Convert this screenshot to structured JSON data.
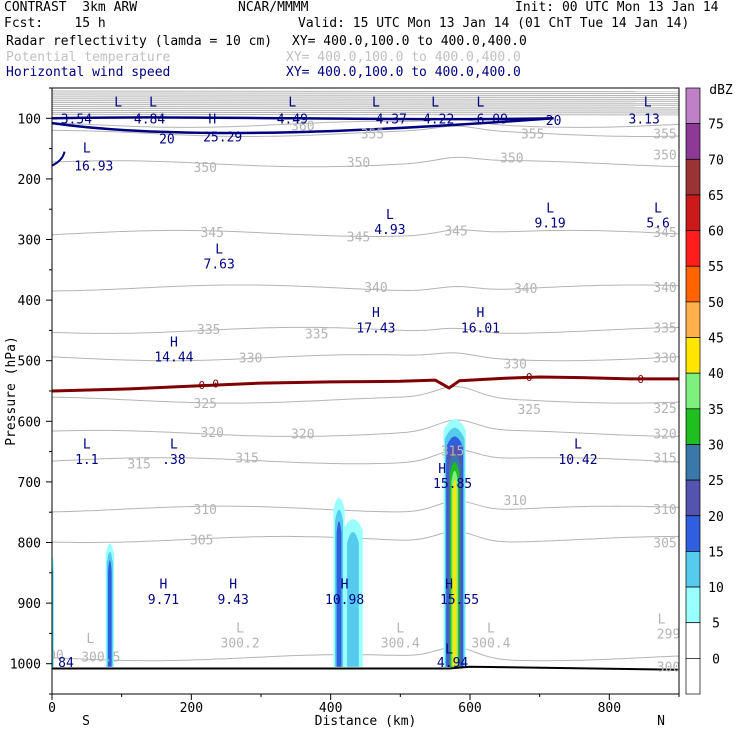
{
  "header": {
    "model": "CONTRAST  3km ARW",
    "center": "NCAR/MMMM",
    "init": "Init: 00 UTC Mon 13 Jan 14",
    "fcst": "Fcst:    15 h",
    "valid": "Valid: 15 UTC Mon 13 Jan 14 (01 ChT Tue 14 Jan 14)",
    "field1": "Radar reflectivity (lamda = 10 cm)",
    "field1_xy": "XY= 400.0,100.0 to 400.0,400.0",
    "field2": "Potential temperature",
    "field2_xy": "XY= 400.0,100.0 to 400.0,400.0",
    "field3": "Horizontal wind speed",
    "field3_xy": "XY= 400.0,100.0 to 400.0,400.0"
  },
  "colors": {
    "theta": "#b4b4b4",
    "wind": "#000080",
    "freezing": "#800000",
    "ground": "#000000"
  },
  "chart_data": {
    "type": "cross-section",
    "xlabel": "Distance (km)",
    "ylabel": "Pressure (hPa)",
    "xlim": [
      0,
      900
    ],
    "ylim": [
      1050,
      50
    ],
    "x_ticks": [
      0,
      200,
      400,
      600,
      800
    ],
    "y_ticks": [
      100,
      200,
      300,
      400,
      500,
      600,
      700,
      800,
      900,
      1000
    ],
    "end_labels": {
      "left": "S",
      "right": "N"
    },
    "colorbar": {
      "title": "dBZ",
      "levels": [
        0,
        5,
        10,
        15,
        20,
        25,
        30,
        35,
        40,
        45,
        50,
        55,
        60,
        65,
        70,
        75
      ],
      "colors": [
        "#ffffff",
        "#99ffff",
        "#55ccee",
        "#2f5fe0",
        "#5454b0",
        "#3a78aa",
        "#1fbf1f",
        "#7ef07e",
        "#ffe600",
        "#ffb04a",
        "#ff6400",
        "#ff1e1e",
        "#cc1a1a",
        "#9a3434",
        "#8c3a96",
        "#c080c8"
      ]
    },
    "reflectivity_cells": [
      {
        "x_center": 83,
        "half_width": 6,
        "top": 800,
        "levels": [
          5,
          10,
          15
        ]
      },
      {
        "x_center": 412,
        "half_width": 8,
        "top": 725,
        "levels": [
          5,
          10,
          15
        ]
      },
      {
        "x_center": 432,
        "half_width": 14,
        "top": 760,
        "levels": [
          5,
          10
        ]
      },
      {
        "x_center": 0,
        "half_width": 3,
        "top": 820,
        "levels": [
          5,
          10
        ]
      },
      {
        "x_center": 578,
        "half_width": 16,
        "top": 595,
        "levels": [
          5,
          10,
          15,
          20,
          25,
          30,
          35,
          40
        ]
      }
    ],
    "theta_contours": [
      {
        "value": "300",
        "p": 990,
        "labels": [
          [
            0,
            985
          ]
        ]
      },
      {
        "value": "305",
        "p": 795,
        "labels": [
          [
            215,
            795
          ],
          [
            880,
            800
          ]
        ]
      },
      {
        "value": "310",
        "p": 745,
        "labels": [
          [
            220,
            745
          ],
          [
            665,
            730
          ],
          [
            880,
            745
          ]
        ]
      },
      {
        "value": "315",
        "p": 665,
        "labels": [
          [
            125,
            670
          ],
          [
            280,
            660
          ],
          [
            575,
            648
          ],
          [
            880,
            660
          ]
        ]
      },
      {
        "value": "320",
        "p": 620,
        "labels": [
          [
            230,
            618
          ],
          [
            360,
            620
          ],
          [
            880,
            620
          ]
        ]
      },
      {
        "value": "325",
        "p": 565,
        "labels": [
          [
            220,
            570
          ],
          [
            685,
            580
          ],
          [
            880,
            578
          ]
        ]
      },
      {
        "value": "330",
        "p": 495,
        "labels": [
          [
            285,
            495
          ],
          [
            665,
            505
          ],
          [
            880,
            495
          ]
        ]
      },
      {
        "value": "335",
        "p": 450,
        "labels": [
          [
            225,
            448
          ],
          [
            380,
            455
          ],
          [
            880,
            445
          ]
        ]
      },
      {
        "value": "340",
        "p": 380,
        "labels": [
          [
            465,
            378
          ],
          [
            680,
            380
          ],
          [
            880,
            378
          ]
        ]
      },
      {
        "value": "345",
        "p": 290,
        "labels": [
          [
            230,
            288
          ],
          [
            440,
            295
          ],
          [
            580,
            285
          ],
          [
            880,
            288
          ]
        ]
      },
      {
        "value": "350",
        "p": 175,
        "labels": [
          [
            220,
            180
          ],
          [
            440,
            172
          ],
          [
            660,
            165
          ],
          [
            880,
            160
          ]
        ]
      },
      {
        "value": "355",
        "p": 125,
        "labels": [
          [
            460,
            125
          ],
          [
            690,
            125
          ],
          [
            880,
            125
          ]
        ]
      },
      {
        "value": "360",
        "p": 110,
        "labels": [
          [
            360,
            112
          ]
        ]
      }
    ],
    "theta_low_labels": [
      {
        "text": "L",
        "x": 55,
        "p": 958
      },
      {
        "text": "300.5",
        "x": 70,
        "p": 988
      },
      {
        "text": "L",
        "x": 270,
        "p": 940
      },
      {
        "text": "300.2",
        "x": 270,
        "p": 965
      },
      {
        "text": "L",
        "x": 500,
        "p": 940
      },
      {
        "text": "300.4",
        "x": 500,
        "p": 965
      },
      {
        "text": "L",
        "x": 630,
        "p": 940
      },
      {
        "text": "300.4",
        "x": 630,
        "p": 965
      },
      {
        "text": "L",
        "x": 875,
        "p": 925
      },
      {
        "text": "299",
        "x": 885,
        "p": 950
      },
      {
        "text": "300",
        "x": 885,
        "p": 1005
      }
    ],
    "wind_contours": [
      {
        "value": "20",
        "labels": [
          [
            165,
            133
          ],
          [
            720,
            103
          ]
        ]
      }
    ],
    "wind_extrema": [
      {
        "text": "L",
        "x": 95,
        "p": 72
      },
      {
        "text": "3.54",
        "x": 35,
        "p": 100
      },
      {
        "text": "L",
        "x": 145,
        "p": 72
      },
      {
        "text": "4.84",
        "x": 140,
        "p": 100
      },
      {
        "text": "L",
        "x": 345,
        "p": 72
      },
      {
        "text": "4.49",
        "x": 345,
        "p": 100
      },
      {
        "text": "L",
        "x": 465,
        "p": 72
      },
      {
        "text": "4.37",
        "x": 487,
        "p": 100
      },
      {
        "text": "L",
        "x": 550,
        "p": 72
      },
      {
        "text": "4.22",
        "x": 555,
        "p": 100
      },
      {
        "text": "L",
        "x": 615,
        "p": 72
      },
      {
        "text": "6.09",
        "x": 632,
        "p": 100
      },
      {
        "text": "L",
        "x": 855,
        "p": 72
      },
      {
        "text": "3.13",
        "x": 850,
        "p": 100
      },
      {
        "text": "H",
        "x": 230,
        "p": 100
      },
      {
        "text": "25.29",
        "x": 245,
        "p": 130
      },
      {
        "text": "L",
        "x": 50,
        "p": 148
      },
      {
        "text": "16.93",
        "x": 60,
        "p": 178
      },
      {
        "text": "L",
        "x": 485,
        "p": 258
      },
      {
        "text": "4.93",
        "x": 485,
        "p": 283
      },
      {
        "text": "L",
        "x": 715,
        "p": 247
      },
      {
        "text": "9.19",
        "x": 715,
        "p": 272
      },
      {
        "text": "L",
        "x": 870,
        "p": 247
      },
      {
        "text": "5.6",
        "x": 870,
        "p": 272
      },
      {
        "text": "L",
        "x": 240,
        "p": 315
      },
      {
        "text": "7.63",
        "x": 240,
        "p": 340
      },
      {
        "text": "H",
        "x": 465,
        "p": 420
      },
      {
        "text": "17.43",
        "x": 465,
        "p": 445
      },
      {
        "text": "H",
        "x": 615,
        "p": 420
      },
      {
        "text": "16.01",
        "x": 615,
        "p": 445
      },
      {
        "text": "H",
        "x": 175,
        "p": 468
      },
      {
        "text": "14.44",
        "x": 175,
        "p": 493
      },
      {
        "text": "L",
        "x": 50,
        "p": 637
      },
      {
        "text": "1.1",
        "x": 50,
        "p": 662
      },
      {
        "text": "L",
        "x": 175,
        "p": 637
      },
      {
        "text": ".38",
        "x": 175,
        "p": 662
      },
      {
        "text": "L",
        "x": 755,
        "p": 637
      },
      {
        "text": "10.42",
        "x": 755,
        "p": 662
      },
      {
        "text": "H",
        "x": 560,
        "p": 677
      },
      {
        "text": "15.85",
        "x": 575,
        "p": 702
      },
      {
        "text": "H",
        "x": 160,
        "p": 868
      },
      {
        "text": "9.71",
        "x": 160,
        "p": 893
      },
      {
        "text": "H",
        "x": 260,
        "p": 868
      },
      {
        "text": "9.43",
        "x": 260,
        "p": 893
      },
      {
        "text": "H",
        "x": 420,
        "p": 868
      },
      {
        "text": "10.98",
        "x": 420,
        "p": 893
      },
      {
        "text": "H",
        "x": 570,
        "p": 868
      },
      {
        "text": "15.55",
        "x": 585,
        "p": 893
      },
      {
        "text": "L",
        "x": 570,
        "p": 975
      },
      {
        "text": "4.94",
        "x": 575,
        "p": 997
      },
      {
        "text": "84",
        "x": 12,
        "p": 997
      }
    ],
    "freezing_level": {
      "value": "0",
      "points": [
        [
          0,
          550
        ],
        [
          100,
          547
        ],
        [
          200,
          542
        ],
        [
          300,
          537
        ],
        [
          400,
          535
        ],
        [
          500,
          534
        ],
        [
          550,
          532
        ],
        [
          570,
          545
        ],
        [
          585,
          533
        ],
        [
          650,
          529
        ],
        [
          700,
          527
        ],
        [
          760,
          528
        ],
        [
          830,
          530
        ],
        [
          900,
          530
        ]
      ],
      "labels": [
        [
          215,
          540
        ],
        [
          235,
          538
        ],
        [
          685,
          527
        ],
        [
          845,
          530
        ]
      ]
    },
    "ground_pressure": [
      [
        0,
        1008
      ],
      [
        570,
        1008
      ],
      [
        600,
        1005
      ],
      [
        900,
        1010
      ]
    ]
  }
}
